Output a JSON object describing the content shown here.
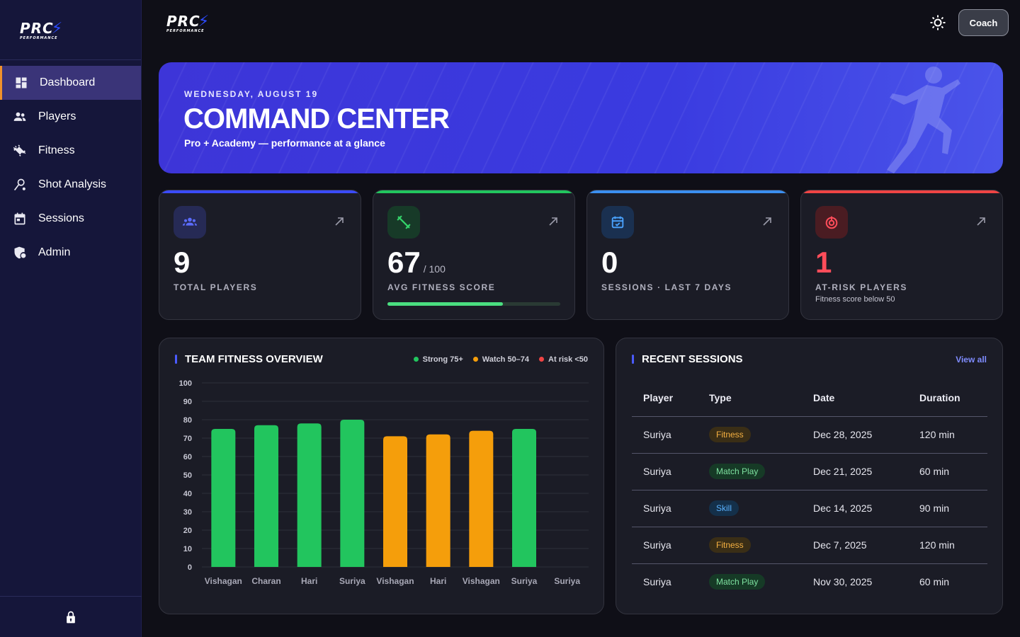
{
  "brand": {
    "name": "PRC",
    "tagline": "PERFORMANCE"
  },
  "sidebar": {
    "items": [
      {
        "label": "Dashboard",
        "icon": "dashboard-icon",
        "active": true
      },
      {
        "label": "Players",
        "icon": "players-icon"
      },
      {
        "label": "Fitness",
        "icon": "dumbbell-icon"
      },
      {
        "label": "Shot Analysis",
        "icon": "shot-analysis-icon"
      },
      {
        "label": "Sessions",
        "icon": "calendar-icon"
      },
      {
        "label": "Admin",
        "icon": "admin-shield-icon"
      }
    ],
    "bottom_icon": "lock-icon"
  },
  "topbar": {
    "theme_icon": "sun-icon",
    "role_button": "Coach"
  },
  "hero": {
    "date": "WEDNESDAY, AUGUST 19",
    "title": "COMMAND CENTER",
    "subtitle": "Pro + Academy — performance at a glance"
  },
  "stats": [
    {
      "value": "9",
      "unit": "",
      "label": "TOTAL PLAYERS",
      "icon": "group-icon",
      "accent": "#3b4bff"
    },
    {
      "value": "67",
      "unit": "/ 100",
      "label": "AVG FITNESS SCORE",
      "icon": "dumbbell-icon",
      "accent": "#22c55e",
      "progress": 0.67
    },
    {
      "value": "0",
      "unit": "",
      "label": "SESSIONS · LAST 7 DAYS",
      "icon": "calendar-check-icon",
      "accent": "#3b8ff0"
    },
    {
      "value": "1",
      "unit": "",
      "label": "AT-RISK PLAYERS",
      "note": "Fitness score below 50",
      "icon": "alert-icon",
      "accent": "#ef4444"
    }
  ],
  "fitness_panel": {
    "title": "TEAM FITNESS OVERVIEW",
    "legend": [
      {
        "label": "Strong 75+",
        "color": "#22c55e"
      },
      {
        "label": "Watch 50–74",
        "color": "#f59e0b"
      },
      {
        "label": "At risk <50",
        "color": "#ef4444"
      }
    ]
  },
  "chart_data": {
    "type": "bar",
    "categories": [
      "Vishagan",
      "Charan",
      "Hari",
      "Suriya",
      "Vishagan",
      "Hari",
      "Vishagan",
      "Suriya",
      "Suriya"
    ],
    "values": [
      75,
      77,
      78,
      80,
      71,
      72,
      74,
      75,
      null
    ],
    "colors": [
      "#22c55e",
      "#22c55e",
      "#22c55e",
      "#22c55e",
      "#f59e0b",
      "#f59e0b",
      "#f59e0b",
      "#22c55e",
      null
    ],
    "ylim": [
      0,
      100
    ],
    "yticks": [
      0,
      10,
      20,
      30,
      40,
      50,
      60,
      70,
      80,
      90,
      100
    ],
    "grid": true,
    "legend_position": "top-right"
  },
  "sessions_panel": {
    "title": "RECENT SESSIONS",
    "view_all": "View all",
    "columns": [
      "Player",
      "Type",
      "Date",
      "Duration"
    ],
    "rows": [
      {
        "player": "Suriya",
        "type": "Fitness",
        "date": "Dec 28, 2025",
        "duration": "120 min"
      },
      {
        "player": "Suriya",
        "type": "Match Play",
        "date": "Dec 21, 2025",
        "duration": "60 min"
      },
      {
        "player": "Suriya",
        "type": "Skill",
        "date": "Dec 14, 2025",
        "duration": "90 min"
      },
      {
        "player": "Suriya",
        "type": "Fitness",
        "date": "Dec 7, 2025",
        "duration": "120 min"
      },
      {
        "player": "Suriya",
        "type": "Match Play",
        "date": "Nov 30, 2025",
        "duration": "60 min"
      }
    ]
  }
}
